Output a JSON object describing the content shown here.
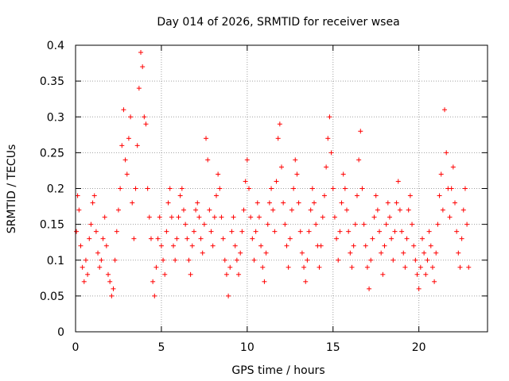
{
  "chart_data": {
    "type": "scatter",
    "title": "Day 014 of 2026, SRMTID for receiver wsea",
    "xlabel": "GPS time / hours",
    "ylabel": "SRMTID / TECUs",
    "xlim": [
      0,
      24
    ],
    "ylim": [
      0,
      0.4
    ],
    "x_ticks": [
      0,
      5,
      10,
      15,
      20
    ],
    "x_tick_labels": [
      "0",
      "5",
      "10",
      "15",
      "20"
    ],
    "y_ticks": [
      0,
      0.05,
      0.1,
      0.15,
      0.2,
      0.25,
      0.3,
      0.35,
      0.4
    ],
    "y_tick_labels": [
      "0",
      "0.05",
      "0.1",
      "0.15",
      "0.2",
      "0.25",
      "0.3",
      "0.35",
      "0.4"
    ],
    "grid": true,
    "marker": "+",
    "color": "#ff0000",
    "series": [
      {
        "name": "SRMTID",
        "points": [
          [
            0.05,
            0.14
          ],
          [
            0.12,
            0.19
          ],
          [
            0.2,
            0.17
          ],
          [
            0.3,
            0.12
          ],
          [
            0.4,
            0.09
          ],
          [
            0.5,
            0.07
          ],
          [
            0.6,
            0.1
          ],
          [
            0.7,
            0.08
          ],
          [
            0.8,
            0.13
          ],
          [
            0.9,
            0.15
          ],
          [
            1.0,
            0.18
          ],
          [
            1.1,
            0.19
          ],
          [
            1.2,
            0.14
          ],
          [
            1.3,
            0.11
          ],
          [
            1.4,
            0.09
          ],
          [
            1.5,
            0.1
          ],
          [
            1.6,
            0.13
          ],
          [
            1.7,
            0.16
          ],
          [
            1.8,
            0.12
          ],
          [
            1.9,
            0.08
          ],
          [
            2.0,
            0.07
          ],
          [
            2.1,
            0.05
          ],
          [
            2.2,
            0.06
          ],
          [
            2.3,
            0.1
          ],
          [
            2.4,
            0.14
          ],
          [
            2.5,
            0.17
          ],
          [
            2.6,
            0.2
          ],
          [
            2.7,
            0.26
          ],
          [
            2.8,
            0.31
          ],
          [
            2.9,
            0.24
          ],
          [
            3.0,
            0.22
          ],
          [
            3.1,
            0.27
          ],
          [
            3.2,
            0.3
          ],
          [
            3.3,
            0.18
          ],
          [
            3.4,
            0.13
          ],
          [
            3.5,
            0.2
          ],
          [
            3.6,
            0.26
          ],
          [
            3.7,
            0.34
          ],
          [
            3.8,
            0.39
          ],
          [
            3.9,
            0.37
          ],
          [
            4.0,
            0.3
          ],
          [
            4.1,
            0.29
          ],
          [
            4.2,
            0.2
          ],
          [
            4.3,
            0.16
          ],
          [
            4.4,
            0.13
          ],
          [
            4.5,
            0.07
          ],
          [
            4.6,
            0.05
          ],
          [
            4.7,
            0.09
          ],
          [
            4.8,
            0.13
          ],
          [
            4.9,
            0.16
          ],
          [
            5.0,
            0.12
          ],
          [
            5.1,
            0.1
          ],
          [
            5.2,
            0.08
          ],
          [
            5.3,
            0.14
          ],
          [
            5.4,
            0.18
          ],
          [
            5.5,
            0.2
          ],
          [
            5.6,
            0.16
          ],
          [
            5.7,
            0.12
          ],
          [
            5.8,
            0.1
          ],
          [
            5.9,
            0.13
          ],
          [
            6.0,
            0.16
          ],
          [
            6.1,
            0.19
          ],
          [
            6.2,
            0.2
          ],
          [
            6.3,
            0.17
          ],
          [
            6.4,
            0.15
          ],
          [
            6.5,
            0.13
          ],
          [
            6.6,
            0.1
          ],
          [
            6.7,
            0.08
          ],
          [
            6.8,
            0.12
          ],
          [
            6.9,
            0.14
          ],
          [
            7.0,
            0.17
          ],
          [
            7.1,
            0.18
          ],
          [
            7.2,
            0.16
          ],
          [
            7.3,
            0.13
          ],
          [
            7.4,
            0.11
          ],
          [
            7.5,
            0.15
          ],
          [
            7.6,
            0.27
          ],
          [
            7.7,
            0.24
          ],
          [
            7.8,
            0.17
          ],
          [
            7.9,
            0.14
          ],
          [
            8.0,
            0.12
          ],
          [
            8.1,
            0.16
          ],
          [
            8.2,
            0.19
          ],
          [
            8.3,
            0.22
          ],
          [
            8.4,
            0.2
          ],
          [
            8.5,
            0.16
          ],
          [
            8.6,
            0.13
          ],
          [
            8.7,
            0.1
          ],
          [
            8.8,
            0.08
          ],
          [
            8.9,
            0.05
          ],
          [
            9.0,
            0.09
          ],
          [
            9.1,
            0.14
          ],
          [
            9.2,
            0.16
          ],
          [
            9.3,
            0.12
          ],
          [
            9.4,
            0.1
          ],
          [
            9.5,
            0.08
          ],
          [
            9.6,
            0.11
          ],
          [
            9.7,
            0.14
          ],
          [
            9.8,
            0.17
          ],
          [
            9.9,
            0.21
          ],
          [
            10.0,
            0.24
          ],
          [
            10.1,
            0.2
          ],
          [
            10.2,
            0.16
          ],
          [
            10.3,
            0.13
          ],
          [
            10.4,
            0.1
          ],
          [
            10.5,
            0.14
          ],
          [
            10.6,
            0.18
          ],
          [
            10.7,
            0.16
          ],
          [
            10.8,
            0.12
          ],
          [
            10.9,
            0.09
          ],
          [
            11.0,
            0.07
          ],
          [
            11.1,
            0.11
          ],
          [
            11.2,
            0.15
          ],
          [
            11.3,
            0.18
          ],
          [
            11.4,
            0.2
          ],
          [
            11.5,
            0.17
          ],
          [
            11.6,
            0.14
          ],
          [
            11.7,
            0.21
          ],
          [
            11.8,
            0.27
          ],
          [
            11.9,
            0.29
          ],
          [
            12.0,
            0.23
          ],
          [
            12.1,
            0.18
          ],
          [
            12.2,
            0.15
          ],
          [
            12.3,
            0.12
          ],
          [
            12.4,
            0.09
          ],
          [
            12.5,
            0.13
          ],
          [
            12.6,
            0.17
          ],
          [
            12.7,
            0.2
          ],
          [
            12.8,
            0.24
          ],
          [
            12.9,
            0.22
          ],
          [
            13.0,
            0.18
          ],
          [
            13.1,
            0.14
          ],
          [
            13.2,
            0.11
          ],
          [
            13.3,
            0.09
          ],
          [
            13.4,
            0.07
          ],
          [
            13.5,
            0.1
          ],
          [
            13.6,
            0.14
          ],
          [
            13.7,
            0.17
          ],
          [
            13.8,
            0.2
          ],
          [
            13.9,
            0.18
          ],
          [
            14.0,
            0.15
          ],
          [
            14.1,
            0.12
          ],
          [
            14.2,
            0.09
          ],
          [
            14.3,
            0.12
          ],
          [
            14.4,
            0.16
          ],
          [
            14.5,
            0.19
          ],
          [
            14.6,
            0.23
          ],
          [
            14.7,
            0.27
          ],
          [
            14.8,
            0.3
          ],
          [
            14.9,
            0.25
          ],
          [
            15.0,
            0.2
          ],
          [
            15.1,
            0.16
          ],
          [
            15.2,
            0.13
          ],
          [
            15.3,
            0.1
          ],
          [
            15.4,
            0.14
          ],
          [
            15.5,
            0.18
          ],
          [
            15.6,
            0.22
          ],
          [
            15.7,
            0.2
          ],
          [
            15.8,
            0.17
          ],
          [
            15.9,
            0.14
          ],
          [
            16.0,
            0.11
          ],
          [
            16.1,
            0.09
          ],
          [
            16.2,
            0.12
          ],
          [
            16.3,
            0.15
          ],
          [
            16.4,
            0.19
          ],
          [
            16.5,
            0.24
          ],
          [
            16.6,
            0.28
          ],
          [
            16.7,
            0.2
          ],
          [
            16.8,
            0.15
          ],
          [
            16.9,
            0.12
          ],
          [
            17.0,
            0.09
          ],
          [
            17.1,
            0.06
          ],
          [
            17.2,
            0.1
          ],
          [
            17.3,
            0.13
          ],
          [
            17.4,
            0.16
          ],
          [
            17.5,
            0.19
          ],
          [
            17.6,
            0.17
          ],
          [
            17.7,
            0.14
          ],
          [
            17.8,
            0.11
          ],
          [
            17.9,
            0.08
          ],
          [
            18.0,
            0.12
          ],
          [
            18.1,
            0.15
          ],
          [
            18.2,
            0.18
          ],
          [
            18.3,
            0.16
          ],
          [
            18.4,
            0.13
          ],
          [
            18.5,
            0.1
          ],
          [
            18.6,
            0.14
          ],
          [
            18.7,
            0.18
          ],
          [
            18.8,
            0.21
          ],
          [
            18.9,
            0.17
          ],
          [
            19.0,
            0.14
          ],
          [
            19.1,
            0.11
          ],
          [
            19.2,
            0.09
          ],
          [
            19.3,
            0.13
          ],
          [
            19.4,
            0.17
          ],
          [
            19.5,
            0.19
          ],
          [
            19.6,
            0.15
          ],
          [
            19.7,
            0.12
          ],
          [
            19.8,
            0.1
          ],
          [
            19.9,
            0.08
          ],
          [
            20.0,
            0.06
          ],
          [
            20.1,
            0.09
          ],
          [
            20.2,
            0.13
          ],
          [
            20.3,
            0.11
          ],
          [
            20.4,
            0.08
          ],
          [
            20.5,
            0.1
          ],
          [
            20.6,
            0.14
          ],
          [
            20.7,
            0.12
          ],
          [
            20.8,
            0.09
          ],
          [
            20.9,
            0.07
          ],
          [
            21.0,
            0.11
          ],
          [
            21.1,
            0.15
          ],
          [
            21.2,
            0.19
          ],
          [
            21.3,
            0.22
          ],
          [
            21.4,
            0.17
          ],
          [
            21.5,
            0.31
          ],
          [
            21.6,
            0.25
          ],
          [
            21.7,
            0.2
          ],
          [
            21.8,
            0.16
          ],
          [
            21.9,
            0.2
          ],
          [
            22.0,
            0.23
          ],
          [
            22.1,
            0.18
          ],
          [
            22.2,
            0.14
          ],
          [
            22.3,
            0.11
          ],
          [
            22.4,
            0.09
          ],
          [
            22.5,
            0.13
          ],
          [
            22.6,
            0.17
          ],
          [
            22.7,
            0.2
          ],
          [
            22.8,
            0.15
          ],
          [
            22.9,
            0.09
          ]
        ]
      }
    ]
  }
}
